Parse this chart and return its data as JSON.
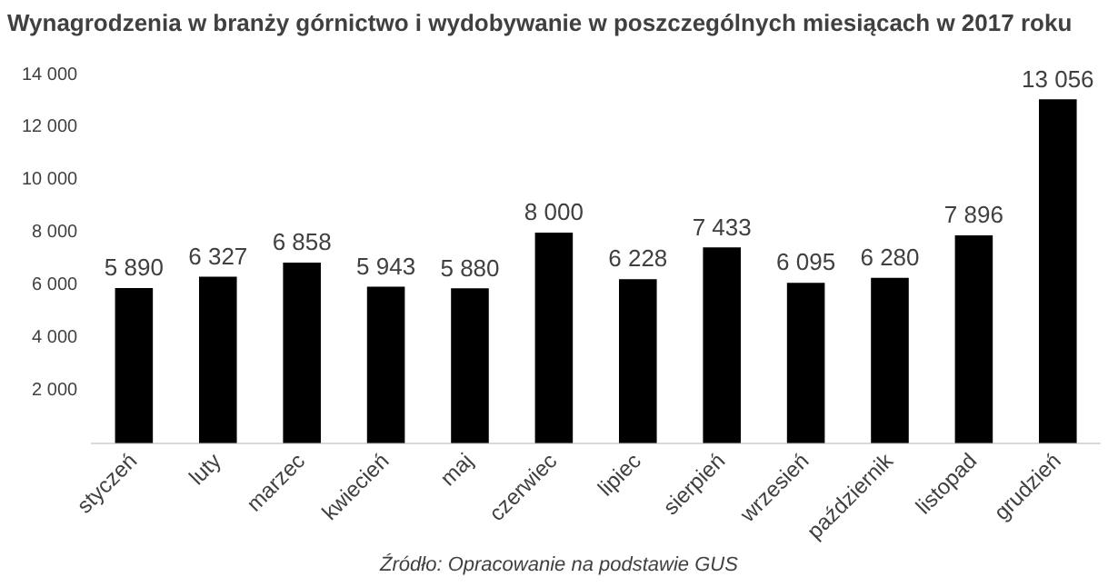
{
  "chart_data": {
    "type": "bar",
    "title": "Wynagrodzenia w branży górnictwo i wydobywanie w poszczególnych miesiącach w 2017 roku",
    "categories": [
      "styczeń",
      "luty",
      "marzec",
      "kwiecień",
      "maj",
      "czerwiec",
      "lipiec",
      "sierpień",
      "wrzesień",
      "październik",
      "listopad",
      "grudzień"
    ],
    "values": [
      5890,
      6327,
      6858,
      5943,
      5880,
      8000,
      6228,
      7433,
      6095,
      6280,
      7896,
      13056
    ],
    "value_labels": [
      "5 890",
      "6 327",
      "6 858",
      "5 943",
      "5 880",
      "8 000",
      "6 228",
      "7 433",
      "6 095",
      "6 280",
      "7 896",
      "13 056"
    ],
    "color": "#000000",
    "ylim": [
      0,
      14000
    ],
    "yticks": [
      {
        "value": 2000,
        "label": "2 000"
      },
      {
        "value": 4000,
        "label": "4 000"
      },
      {
        "value": 6000,
        "label": "6 000"
      },
      {
        "value": 8000,
        "label": "8 000"
      },
      {
        "value": 10000,
        "label": "10 000"
      },
      {
        "value": 12000,
        "label": "12 000"
      },
      {
        "value": 14000,
        "label": "14 000"
      }
    ],
    "grid": false,
    "legend": false,
    "annotations": [
      "Źródło: Opracowanie na podstawie GUS"
    ]
  }
}
